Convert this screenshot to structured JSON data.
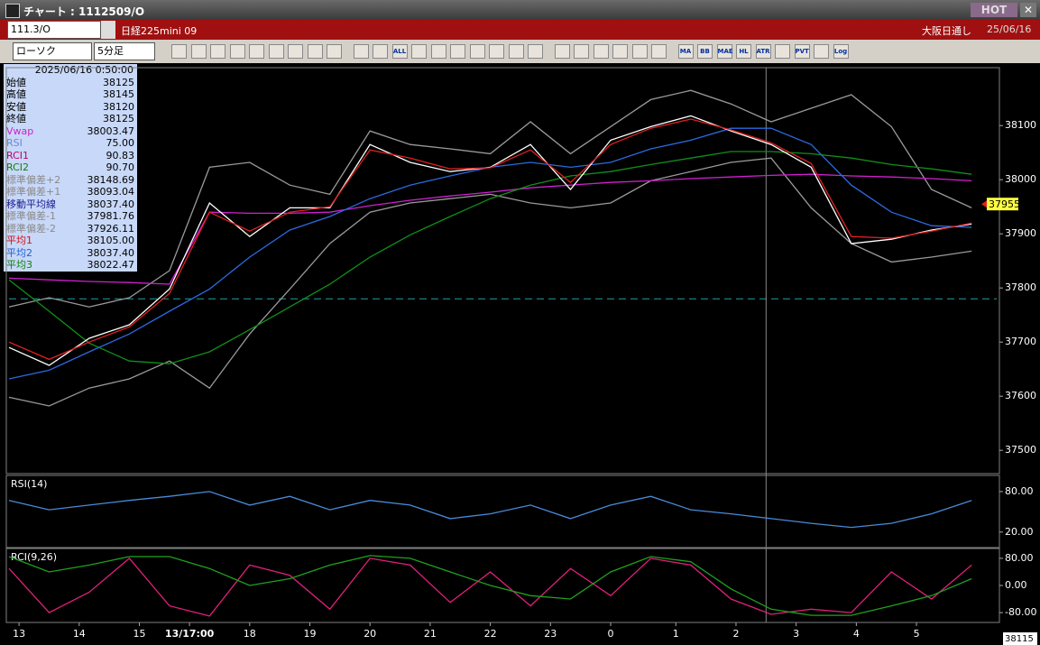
{
  "window": {
    "title": "チャート : 1112509/O",
    "hot": "HOT",
    "close": "✕"
  },
  "header": {
    "code": "111.3/O",
    "name": "日経225mini 09",
    "market": "大阪日通し",
    "date": "25/06/16"
  },
  "toolbar": {
    "chart_type": "ローソク",
    "interval": "5分足",
    "labels": [
      "ALL",
      "MA",
      "BB",
      "MAE",
      "HL",
      "ATR",
      "PVT",
      "Log"
    ]
  },
  "info_panel": {
    "datetime": "2025/06/16 0:50:00",
    "rows": [
      [
        "始値",
        "38125"
      ],
      [
        "高値",
        "38145"
      ],
      [
        "安値",
        "38120"
      ],
      [
        "終値",
        "38125"
      ],
      [
        "Vwap",
        "38003.47"
      ],
      [
        "RSI",
        "75.00"
      ],
      [
        "RCI1",
        "90.83"
      ],
      [
        "RCI2",
        "90.70"
      ],
      [
        "標準偏差+2",
        "38148.69"
      ],
      [
        "標準偏差+1",
        "38093.04"
      ],
      [
        "移動平均線",
        "38037.40"
      ],
      [
        "標準偏差-1",
        "37981.76"
      ],
      [
        "標準偏差-2",
        "37926.11"
      ],
      [
        "平均1",
        "38105.00"
      ],
      [
        "平均2",
        "38037.40"
      ],
      [
        "平均3",
        "38022.47"
      ]
    ]
  },
  "chart_data": [
    {
      "type": "line",
      "xlim": [
        0,
        197
      ],
      "ylim": [
        37457,
        38207
      ],
      "yticks": [
        37500,
        37600,
        37700,
        37800,
        37900,
        38000,
        38100
      ],
      "xticks": [
        {
          "value": 2,
          "label": "13"
        },
        {
          "value": 14,
          "label": "14"
        },
        {
          "value": 26,
          "label": "15"
        },
        {
          "value": 36,
          "label": "13/17:00"
        },
        {
          "value": 48,
          "label": "18"
        },
        {
          "value": 60,
          "label": "19"
        },
        {
          "value": 72,
          "label": "20"
        },
        {
          "value": 84,
          "label": "21"
        },
        {
          "value": 96,
          "label": "22"
        },
        {
          "value": 108,
          "label": "23"
        },
        {
          "value": 120,
          "label": "0"
        },
        {
          "value": 133,
          "label": "1"
        },
        {
          "value": 145,
          "label": "2"
        },
        {
          "value": 157,
          "label": "3"
        },
        {
          "value": 169,
          "label": "4"
        },
        {
          "value": 181,
          "label": "5"
        }
      ],
      "reference_line": 37780,
      "last_price": 37955,
      "cursor_x": 151,
      "cursor_price": 38115,
      "x": [
        0,
        8,
        16,
        24,
        32,
        40,
        48,
        56,
        64,
        72,
        80,
        88,
        96,
        104,
        112,
        120,
        128,
        136,
        144,
        152,
        160,
        168,
        176,
        184,
        192
      ],
      "series": [
        {
          "name": "標準偏差+2",
          "color": "#9a9a9a",
          "values": [
            37765,
            37782,
            37765,
            37782,
            37832,
            38023,
            38032,
            37990,
            37973,
            38090,
            38065,
            38057,
            38048,
            38107,
            38048,
            38098,
            38148,
            38165,
            38140,
            38107,
            38132,
            38157,
            38098,
            37982,
            37948
          ]
        },
        {
          "name": "標準偏差-2",
          "color": "#9a9a9a",
          "values": [
            37598,
            37582,
            37615,
            37632,
            37665,
            37615,
            37715,
            37798,
            37882,
            37940,
            37957,
            37965,
            37973,
            37957,
            37948,
            37957,
            37998,
            38015,
            38032,
            38040,
            37948,
            37882,
            37848,
            37857,
            37868
          ]
        },
        {
          "name": "Vwap",
          "color": "#d020d0",
          "values": [
            37818,
            37815,
            37812,
            37810,
            37807,
            37940,
            37938,
            37938,
            37940,
            37952,
            37962,
            37970,
            37977,
            37985,
            37990,
            37995,
            37998,
            38002,
            38005,
            38008,
            38010,
            38007,
            38005,
            38002,
            37998
          ]
        },
        {
          "name": "平均3",
          "color": "#10901a",
          "values": [
            37815,
            37757,
            37698,
            37665,
            37660,
            37682,
            37723,
            37765,
            37807,
            37857,
            37898,
            37932,
            37965,
            37990,
            38007,
            38015,
            38028,
            38040,
            38052,
            38052,
            38048,
            38040,
            38028,
            38020,
            38010
          ]
        },
        {
          "name": "平均2",
          "color": "#2a6ae0",
          "values": [
            37632,
            37648,
            37682,
            37715,
            37757,
            37798,
            37857,
            37907,
            37932,
            37965,
            37990,
            38007,
            38023,
            38032,
            38023,
            38032,
            38057,
            38073,
            38095,
            38095,
            38065,
            37990,
            37940,
            37915,
            37912
          ]
        },
        {
          "name": "終値",
          "color": "#ffffff",
          "values": [
            37690,
            37657,
            37707,
            37732,
            37798,
            37957,
            37895,
            37948,
            37948,
            38065,
            38032,
            38015,
            38023,
            38065,
            37982,
            38073,
            38098,
            38118,
            38090,
            38065,
            38023,
            37882,
            37890,
            37907,
            37918
          ]
        },
        {
          "name": "平均1",
          "color": "#e02020",
          "values": [
            37700,
            37668,
            37700,
            37728,
            37790,
            37940,
            37905,
            37940,
            37950,
            38055,
            38040,
            38020,
            38022,
            38055,
            37995,
            38065,
            38095,
            38112,
            38092,
            38068,
            38030,
            37895,
            37892,
            37905,
            37920
          ]
        }
      ]
    },
    {
      "type": "line",
      "title": "RSI(14)",
      "xlim": [
        0,
        197
      ],
      "ylim": [
        -3,
        104
      ],
      "yticks": [
        {
          "value": 20,
          "label": "20.00"
        },
        {
          "value": 80,
          "label": "80.00"
        }
      ],
      "x": [
        0,
        8,
        16,
        24,
        32,
        40,
        48,
        56,
        64,
        72,
        80,
        88,
        96,
        104,
        112,
        120,
        128,
        136,
        144,
        152,
        160,
        168,
        176,
        184,
        192
      ],
      "series": [
        {
          "name": "RSI",
          "color": "#4a8ad8",
          "values": [
            67,
            53,
            60,
            67,
            73,
            80,
            60,
            73,
            53,
            67,
            60,
            40,
            47,
            60,
            40,
            60,
            73,
            53,
            47,
            40,
            33,
            27,
            33,
            47,
            67
          ]
        }
      ]
    },
    {
      "type": "line",
      "title": "RCI(9,26)",
      "xlim": [
        0,
        197
      ],
      "ylim": [
        -109,
        109
      ],
      "yticks": [
        {
          "value": -80,
          "label": "-80.00"
        },
        {
          "value": 0,
          "label": "0.00"
        },
        {
          "value": 80,
          "label": "80.00"
        }
      ],
      "x": [
        0,
        8,
        16,
        24,
        32,
        40,
        48,
        56,
        64,
        72,
        80,
        88,
        96,
        104,
        112,
        120,
        128,
        136,
        144,
        152,
        160,
        168,
        176,
        184,
        192
      ],
      "series": [
        {
          "name": "RCI1",
          "color": "#e0207a",
          "values": [
            50,
            -80,
            -20,
            80,
            -60,
            -90,
            60,
            30,
            -70,
            80,
            60,
            -50,
            40,
            -60,
            50,
            -30,
            80,
            60,
            -40,
            -85,
            -70,
            -80,
            40,
            -40,
            60
          ]
        },
        {
          "name": "RCI2",
          "color": "#20a020",
          "values": [
            85,
            40,
            60,
            85,
            85,
            50,
            0,
            20,
            60,
            88,
            80,
            40,
            0,
            -30,
            -40,
            40,
            85,
            70,
            -10,
            -70,
            -88,
            -88,
            -60,
            -30,
            20
          ]
        }
      ]
    }
  ]
}
